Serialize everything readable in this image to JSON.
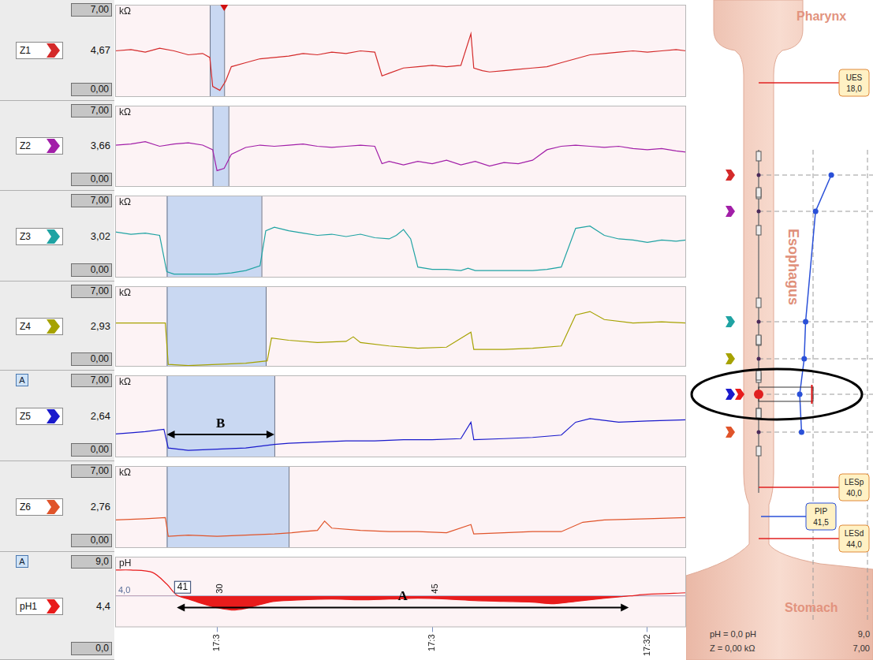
{
  "chart_data": [
    {
      "type": "line",
      "ylabel": "kΩ",
      "x": [
        22.9,
        24,
        25,
        26,
        27,
        28,
        29,
        29.5,
        29.7,
        30.2,
        30.6,
        31,
        32,
        33,
        34,
        35,
        36,
        37,
        38,
        39,
        40,
        41,
        41.5,
        42,
        43,
        44,
        45,
        46,
        47,
        47.7,
        47.9,
        48.5,
        49,
        50,
        51,
        52,
        53,
        54,
        55,
        56,
        57,
        58,
        59,
        60,
        61,
        62,
        62.7
      ],
      "series": [
        {
          "name": "Z1",
          "color": "#d42a2a",
          "values": [
            3.5,
            3.6,
            3.4,
            3.7,
            3.5,
            3.2,
            3.3,
            3.0,
            0.8,
            0.5,
            1.2,
            2.3,
            2.6,
            2.9,
            3.0,
            3.1,
            3.3,
            3.2,
            3.4,
            3.3,
            3.5,
            3.4,
            1.6,
            1.8,
            2.2,
            2.3,
            2.4,
            2.3,
            2.4,
            4.8,
            2.2,
            2.0,
            1.9,
            2.0,
            2.1,
            2.2,
            2.3,
            2.6,
            2.9,
            3.2,
            3.3,
            3.4,
            3.5,
            3.4,
            3.5,
            3.6,
            3.5
          ]
        }
      ],
      "xlim": [
        22.9,
        62.7
      ],
      "ylim": [
        0,
        7
      ],
      "yticks": [
        {
          "value": 0,
          "label": "0,00"
        },
        {
          "value": 7,
          "label": "7,00"
        }
      ],
      "tick_labels": "y",
      "readout": 4.67,
      "readout_label": "4,67",
      "regions": [
        [
          29.5,
          30.5
        ]
      ],
      "cursor": 30.5
    },
    {
      "type": "line",
      "ylabel": "kΩ",
      "x": [
        22.9,
        24,
        25,
        26,
        27,
        28,
        29,
        29.7,
        30,
        30.5,
        31,
        32,
        33,
        34,
        35,
        36,
        37,
        38,
        39,
        40,
        41,
        41.5,
        42,
        43,
        44,
        45,
        46,
        47,
        48,
        49,
        50,
        51,
        52,
        53,
        54,
        55,
        56,
        57,
        58,
        59,
        60,
        61,
        62,
        62.7
      ],
      "series": [
        {
          "name": "Z2",
          "color": "#a21fa8",
          "values": [
            3.6,
            3.7,
            3.9,
            3.5,
            3.7,
            3.8,
            3.6,
            3.2,
            1.4,
            1.6,
            2.8,
            3.4,
            3.6,
            3.5,
            3.6,
            3.7,
            3.5,
            3.4,
            3.5,
            3.6,
            3.5,
            2.0,
            2.2,
            1.9,
            2.2,
            2.0,
            2.3,
            1.9,
            2.2,
            1.8,
            2.1,
            2.0,
            2.3,
            3.2,
            3.5,
            3.6,
            3.5,
            3.4,
            3.5,
            3.3,
            3.2,
            3.3,
            3.1,
            3.0
          ]
        }
      ],
      "xlim": [
        22.9,
        62.7
      ],
      "ylim": [
        0,
        7
      ],
      "yticks": [
        {
          "value": 0,
          "label": "0,00"
        },
        {
          "value": 7,
          "label": "7,00"
        }
      ],
      "tick_labels": "y",
      "readout": 3.66,
      "readout_label": "3,66",
      "regions": [
        [
          29.7,
          30.8
        ]
      ]
    },
    {
      "type": "line",
      "ylabel": "kΩ",
      "x": [
        22.9,
        24,
        25,
        26,
        26.5,
        27,
        28,
        29,
        30,
        31,
        32,
        33,
        33.4,
        34,
        35,
        36,
        37,
        38,
        39,
        40,
        41,
        42,
        42.5,
        43,
        43.5,
        44,
        45,
        46,
        47,
        47.5,
        48,
        50,
        52,
        53,
        54,
        55,
        56,
        57,
        58,
        59,
        60,
        61,
        62,
        62.7
      ],
      "series": [
        {
          "name": "Z3",
          "color": "#1fa3a3",
          "values": [
            3.9,
            3.7,
            3.8,
            3.6,
            0.5,
            0.3,
            0.3,
            0.3,
            0.3,
            0.4,
            0.6,
            1.0,
            4.0,
            4.3,
            4.0,
            3.8,
            3.6,
            3.7,
            3.5,
            3.7,
            3.4,
            3.3,
            3.6,
            4.1,
            3.3,
            0.9,
            0.7,
            0.7,
            0.6,
            0.8,
            0.6,
            0.6,
            0.6,
            0.7,
            0.9,
            4.2,
            4.4,
            3.6,
            3.3,
            3.2,
            3.0,
            3.2,
            3.1,
            3.2
          ]
        }
      ],
      "xlim": [
        22.9,
        62.7
      ],
      "ylim": [
        0,
        7
      ],
      "yticks": [
        {
          "value": 0,
          "label": "0,00"
        },
        {
          "value": 7,
          "label": "7,00"
        }
      ],
      "tick_labels": "y",
      "readout": 3.02,
      "readout_label": "3,02",
      "regions": [
        [
          26.5,
          33.1
        ]
      ]
    },
    {
      "type": "line",
      "ylabel": "kΩ",
      "x": [
        22.9,
        25,
        26.4,
        26.6,
        28,
        30,
        32,
        33.5,
        33.8,
        35,
        37,
        39,
        39.5,
        40,
        42,
        44,
        46,
        47.7,
        47.9,
        50,
        52,
        54,
        55,
        56,
        57,
        59,
        61,
        62.7
      ],
      "series": [
        {
          "name": "Z4",
          "color": "#a6a200",
          "values": [
            3.8,
            3.8,
            3.8,
            0.2,
            0.1,
            0.2,
            0.3,
            0.5,
            2.5,
            2.3,
            2.1,
            2.2,
            2.6,
            2.1,
            1.8,
            1.6,
            1.7,
            3.0,
            1.5,
            1.5,
            1.6,
            1.8,
            4.5,
            4.8,
            4.1,
            3.8,
            3.9,
            3.8
          ]
        }
      ],
      "xlim": [
        22.9,
        62.7
      ],
      "ylim": [
        0,
        7
      ],
      "yticks": [
        {
          "value": 0,
          "label": "0,00"
        },
        {
          "value": 7,
          "label": "7,00"
        }
      ],
      "tick_labels": "y",
      "readout": 2.93,
      "readout_label": "2,93",
      "regions": [
        [
          26.5,
          33.4
        ]
      ]
    },
    {
      "type": "line",
      "ylabel": "kΩ",
      "badge": "A",
      "x": [
        22.9,
        24,
        25,
        26.3,
        26.6,
        28,
        30,
        32,
        34,
        35,
        37,
        39,
        41,
        43,
        45,
        47,
        47.7,
        47.9,
        50,
        52,
        54,
        55,
        56,
        58,
        60,
        62.7
      ],
      "series": [
        {
          "name": "Z5",
          "color": "#1a1acc",
          "values": [
            2.0,
            2.1,
            2.2,
            2.4,
            0.8,
            0.6,
            0.7,
            0.8,
            1.1,
            1.2,
            1.3,
            1.4,
            1.4,
            1.5,
            1.5,
            1.6,
            3.0,
            1.5,
            1.6,
            1.7,
            1.9,
            3.0,
            3.3,
            3.0,
            3.1,
            3.2
          ]
        }
      ],
      "xlim": [
        22.9,
        62.7
      ],
      "ylim": [
        0,
        7
      ],
      "yticks": [
        {
          "value": 0,
          "label": "0,00"
        },
        {
          "value": 7,
          "label": "7,00"
        }
      ],
      "tick_labels": "y",
      "readout": 2.64,
      "readout_label": "2,64",
      "regions": [
        [
          26.5,
          34.0
        ]
      ],
      "arrow": {
        "text": "B",
        "x_range": [
          26.5,
          34.0
        ]
      }
    },
    {
      "type": "line",
      "ylabel": "kΩ",
      "x": [
        22.9,
        25,
        26.4,
        26.6,
        28,
        30,
        32,
        34,
        35.2,
        36,
        37,
        37.5,
        38,
        40,
        42,
        44,
        46,
        47.7,
        47.9,
        50,
        52,
        54,
        55.5,
        57,
        60,
        62.7
      ],
      "series": [
        {
          "name": "Z6",
          "color": "#e0542a",
          "values": [
            2.4,
            2.5,
            2.6,
            1.0,
            1.1,
            1.0,
            1.1,
            1.2,
            1.3,
            1.4,
            1.5,
            2.3,
            1.7,
            1.5,
            1.4,
            1.4,
            1.3,
            2.0,
            1.2,
            1.3,
            1.4,
            1.4,
            2.2,
            2.4,
            2.5,
            2.6
          ]
        }
      ],
      "xlim": [
        22.9,
        62.7
      ],
      "ylim": [
        0,
        7
      ],
      "yticks": [
        {
          "value": 0,
          "label": "0,00"
        },
        {
          "value": 7,
          "label": "7,00"
        }
      ],
      "tick_labels": "y",
      "readout": 2.76,
      "readout_label": "2,76",
      "regions": [
        [
          26.5,
          35.0
        ]
      ]
    },
    {
      "type": "line",
      "ylabel": "pH",
      "badge": "A",
      "x": [
        22.9,
        24,
        25.5,
        26.5,
        27.2,
        28,
        29,
        30,
        31,
        32,
        33,
        34,
        36,
        38,
        40,
        42,
        44,
        46,
        48,
        50,
        52,
        53.5,
        55,
        57,
        58.8,
        60,
        62.7
      ],
      "series": [
        {
          "name": "pH1",
          "color": "#e81c1c",
          "values": [
            7.3,
            7.3,
            7.0,
            5.5,
            4.1,
            3.6,
            3.0,
            2.5,
            2.2,
            2.4,
            2.9,
            3.3,
            3.5,
            3.6,
            3.5,
            3.6,
            3.7,
            3.6,
            3.4,
            3.3,
            3.2,
            3.0,
            3.3,
            3.7,
            4.0,
            4.2,
            4.4
          ]
        }
      ],
      "xlim": [
        22.9,
        62.7
      ],
      "xticks": [
        {
          "value": 30,
          "label": "17:3"
        },
        {
          "value": 45,
          "label": "17:3"
        },
        {
          "value": 60,
          "label": "17:32"
        }
      ],
      "ylim": [
        0,
        9
      ],
      "yticks": [
        {
          "value": 0,
          "label": "0,0"
        },
        {
          "value": 9,
          "label": "9,0"
        }
      ],
      "tick_labels": true,
      "readout": 4.4,
      "readout_label": "4,4",
      "threshold": {
        "value": 4,
        "label": "4,0"
      },
      "cursor_label": {
        "text": "41",
        "x": 27.6
      },
      "annotations": [
        {
          "text": "30",
          "x": 30
        },
        {
          "text": "45",
          "x": 45
        }
      ],
      "arrow": {
        "text": "A",
        "x_range": [
          27.2,
          58.7
        ]
      }
    }
  ],
  "diagram": {
    "regions": {
      "pharynx": "Pharynx",
      "esophagus": "Esophagus",
      "stomach": "Stomach"
    },
    "markers": [
      {
        "label": "UES",
        "value_label": "18,0"
      },
      {
        "label": "LESp",
        "value_label": "40,0"
      },
      {
        "label": "PIP",
        "value_label": "41,5"
      },
      {
        "label": "LESd",
        "value_label": "44,0"
      }
    ],
    "ph_scale": {
      "min": 0,
      "max": 9,
      "min_label": "pH = 0,0 pH",
      "max_label": "9,0"
    },
    "z_scale": {
      "min": 0,
      "max": 7,
      "min_label": "Z = 0,00 kΩ",
      "max_label": "7,00"
    }
  }
}
